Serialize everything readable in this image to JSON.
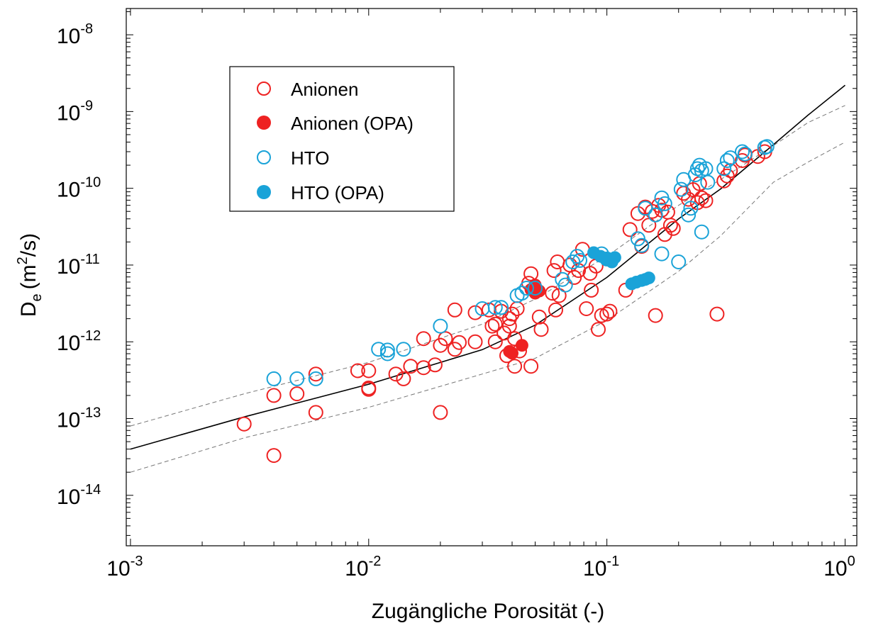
{
  "chart_data": {
    "type": "scatter",
    "title": "",
    "xlabel": "Zugängliche Porosität (-)",
    "ylabel": {
      "main": "D",
      "sub": "e",
      "unit_pre": "(m",
      "unit_sup": "2",
      "unit_post": "/s)"
    },
    "xscale": "log",
    "yscale": "log",
    "xlim": [
      0.00096,
      1.12
    ],
    "ylim": [
      2.2e-15,
      2.2e-08
    ],
    "x_ticks": [
      {
        "value": 0.001,
        "base": "10",
        "exp": "-3"
      },
      {
        "value": 0.01,
        "base": "10",
        "exp": "-2"
      },
      {
        "value": 0.1,
        "base": "10",
        "exp": "-1"
      },
      {
        "value": 1,
        "base": "10",
        "exp": "0"
      }
    ],
    "y_ticks": [
      {
        "value": 1e-14,
        "base": "10",
        "exp": "-14"
      },
      {
        "value": 1e-13,
        "base": "10",
        "exp": "-13"
      },
      {
        "value": 1e-12,
        "base": "10",
        "exp": "-12"
      },
      {
        "value": 1e-11,
        "base": "10",
        "exp": "-11"
      },
      {
        "value": 1e-10,
        "base": "10",
        "exp": "-10"
      },
      {
        "value": 1e-09,
        "base": "10",
        "exp": "-9"
      },
      {
        "value": 1e-08,
        "base": "10",
        "exp": "-8"
      }
    ],
    "grid": false,
    "legend": {
      "placement": "top-left"
    },
    "colors": {
      "anion": "#ee2222",
      "hto": "#1aa3d8",
      "fit": "#000000",
      "band": "#777777"
    },
    "fit_curve": {
      "style": "solid",
      "points": [
        [
          0.001,
          4e-14
        ],
        [
          0.003,
          1.05e-13
        ],
        [
          0.01,
          2.8e-13
        ],
        [
          0.03,
          7.9e-13
        ],
        [
          0.05,
          1.65e-12
        ],
        [
          0.1,
          6.9e-12
        ],
        [
          0.2,
          4e-11
        ],
        [
          0.3,
          9.8e-11
        ],
        [
          0.5,
          3.7e-10
        ],
        [
          0.7,
          9e-10
        ],
        [
          1.0,
          2.2e-09
        ]
      ]
    },
    "band_upper": {
      "style": "dashed",
      "points": [
        [
          0.001,
          8e-14
        ],
        [
          0.003,
          2.1e-13
        ],
        [
          0.01,
          5.4e-13
        ],
        [
          0.03,
          1.7e-12
        ],
        [
          0.05,
          3.6e-12
        ],
        [
          0.1,
          1.3e-11
        ],
        [
          0.2,
          6e-11
        ],
        [
          0.3,
          1.3e-10
        ],
        [
          0.5,
          3.6e-10
        ],
        [
          0.7,
          7.2e-10
        ],
        [
          1.0,
          1.2e-09
        ]
      ]
    },
    "band_lower": {
      "style": "dashed",
      "points": [
        [
          0.001,
          2e-14
        ],
        [
          0.003,
          5.6e-14
        ],
        [
          0.01,
          1.4e-13
        ],
        [
          0.03,
          3.8e-13
        ],
        [
          0.05,
          6.1e-13
        ],
        [
          0.1,
          1.9e-12
        ],
        [
          0.2,
          8.3e-12
        ],
        [
          0.3,
          2.4e-11
        ],
        [
          0.5,
          1.2e-10
        ],
        [
          0.7,
          2.2e-10
        ],
        [
          1.0,
          4e-10
        ]
      ]
    },
    "series": [
      {
        "name": "Anionen",
        "color": "#ee2222",
        "filled": false,
        "points": [
          [
            0.003,
            8.5e-14
          ],
          [
            0.004,
            3.3e-14
          ],
          [
            0.004,
            2e-13
          ],
          [
            0.005,
            2.1e-13
          ],
          [
            0.006,
            3.8e-13
          ],
          [
            0.006,
            1.2e-13
          ],
          [
            0.009,
            4.2e-13
          ],
          [
            0.01,
            4.2e-13
          ],
          [
            0.01,
            2.5e-13
          ],
          [
            0.01,
            2.4e-13
          ],
          [
            0.013,
            3.8e-13
          ],
          [
            0.014,
            3.3e-13
          ],
          [
            0.015,
            4.8e-13
          ],
          [
            0.017,
            4.6e-13
          ],
          [
            0.017,
            1.1e-12
          ],
          [
            0.019,
            5e-13
          ],
          [
            0.02,
            1.2e-13
          ],
          [
            0.02,
            9e-13
          ],
          [
            0.021,
            1.1e-12
          ],
          [
            0.023,
            2.6e-12
          ],
          [
            0.023,
            8e-13
          ],
          [
            0.024,
            9.8e-13
          ],
          [
            0.028,
            2.4e-12
          ],
          [
            0.028,
            1e-12
          ],
          [
            0.032,
            2.6e-12
          ],
          [
            0.033,
            1.6e-12
          ],
          [
            0.034,
            1.7e-12
          ],
          [
            0.034,
            1e-12
          ],
          [
            0.036,
            2.5e-12
          ],
          [
            0.037,
            1.3e-12
          ],
          [
            0.038,
            6.6e-13
          ],
          [
            0.039,
            2e-12
          ],
          [
            0.039,
            1.6e-12
          ],
          [
            0.04,
            2.3e-12
          ],
          [
            0.041,
            4.8e-13
          ],
          [
            0.041,
            1.1e-12
          ],
          [
            0.042,
            2.7e-12
          ],
          [
            0.043,
            7.6e-13
          ],
          [
            0.047,
            5.8e-12
          ],
          [
            0.048,
            7.7e-12
          ],
          [
            0.048,
            4.8e-13
          ],
          [
            0.052,
            2.1e-12
          ],
          [
            0.053,
            1.45e-12
          ],
          [
            0.059,
            4.3e-12
          ],
          [
            0.06,
            8.5e-12
          ],
          [
            0.061,
            2.6e-12
          ],
          [
            0.062,
            1.1e-11
          ],
          [
            0.063,
            4e-12
          ],
          [
            0.07,
            1e-11
          ],
          [
            0.073,
            6.9e-12
          ],
          [
            0.076,
            8.5e-12
          ],
          [
            0.079,
            1.6e-11
          ],
          [
            0.082,
            2.7e-12
          ],
          [
            0.085,
            7.8e-12
          ],
          [
            0.086,
            4.7e-12
          ],
          [
            0.09,
            9.7e-12
          ],
          [
            0.092,
            1.45e-12
          ],
          [
            0.095,
            2.2e-12
          ],
          [
            0.1,
            2.3e-12
          ],
          [
            0.103,
            2.5e-12
          ],
          [
            0.12,
            4.7e-12
          ],
          [
            0.125,
            2.9e-11
          ],
          [
            0.135,
            4.7e-11
          ],
          [
            0.14,
            1.75e-11
          ],
          [
            0.145,
            5.7e-11
          ],
          [
            0.15,
            3.3e-11
          ],
          [
            0.155,
            5e-11
          ],
          [
            0.16,
            2.2e-12
          ],
          [
            0.165,
            6e-11
          ],
          [
            0.17,
            5.2e-11
          ],
          [
            0.175,
            2.5e-11
          ],
          [
            0.18,
            4.9e-11
          ],
          [
            0.185,
            3.3e-11
          ],
          [
            0.19,
            3e-11
          ],
          [
            0.21,
            8.6e-11
          ],
          [
            0.22,
            7.2e-11
          ],
          [
            0.23,
            9.6e-11
          ],
          [
            0.24,
            6.5e-11
          ],
          [
            0.245,
            1.15e-10
          ],
          [
            0.25,
            7.5e-11
          ],
          [
            0.26,
            6.9e-11
          ],
          [
            0.29,
            2.3e-12
          ],
          [
            0.31,
            1.25e-10
          ],
          [
            0.32,
            1.45e-10
          ],
          [
            0.33,
            1.7e-10
          ],
          [
            0.37,
            2.3e-10
          ],
          [
            0.38,
            2.7e-10
          ],
          [
            0.43,
            2.6e-10
          ],
          [
            0.46,
            3e-10
          ]
        ]
      },
      {
        "name": "Anionen (OPA)",
        "color": "#ee2222",
        "filled": true,
        "points": [
          [
            0.039,
            7.5e-13
          ],
          [
            0.04,
            7.1e-13
          ],
          [
            0.044,
            9e-13
          ],
          [
            0.048,
            4.8e-12
          ],
          [
            0.05,
            5.5e-12
          ],
          [
            0.05,
            4.3e-12
          ],
          [
            0.052,
            4.6e-12
          ]
        ]
      },
      {
        "name": "HTO",
        "color": "#1aa3d8",
        "filled": false,
        "points": [
          [
            0.004,
            3.3e-13
          ],
          [
            0.005,
            3.3e-13
          ],
          [
            0.006,
            3.3e-13
          ],
          [
            0.011,
            8e-13
          ],
          [
            0.012,
            7e-13
          ],
          [
            0.012,
            7.8e-13
          ],
          [
            0.014,
            8e-13
          ],
          [
            0.02,
            1.6e-12
          ],
          [
            0.03,
            2.7e-12
          ],
          [
            0.034,
            2.8e-12
          ],
          [
            0.036,
            2.8e-12
          ],
          [
            0.042,
            4e-12
          ],
          [
            0.044,
            4.3e-12
          ],
          [
            0.046,
            5e-12
          ],
          [
            0.05,
            5e-12
          ],
          [
            0.065,
            6.5e-12
          ],
          [
            0.067,
            5.5e-12
          ],
          [
            0.072,
            1.1e-11
          ],
          [
            0.075,
            1.3e-11
          ],
          [
            0.077,
            1.15e-11
          ],
          [
            0.095,
            1.4e-11
          ],
          [
            0.1,
            1.2e-11
          ],
          [
            0.135,
            2.2e-11
          ],
          [
            0.14,
            1.8e-11
          ],
          [
            0.145,
            5.5e-11
          ],
          [
            0.16,
            4.5e-11
          ],
          [
            0.17,
            7.5e-11
          ],
          [
            0.175,
            6.3e-11
          ],
          [
            0.17,
            1.4e-11
          ],
          [
            0.2,
            1.1e-11
          ],
          [
            0.205,
            9.7e-11
          ],
          [
            0.21,
            1.3e-10
          ],
          [
            0.22,
            4.5e-11
          ],
          [
            0.225,
            5.5e-11
          ],
          [
            0.235,
            1.5e-10
          ],
          [
            0.24,
            1.8e-10
          ],
          [
            0.245,
            2e-10
          ],
          [
            0.25,
            1.7e-10
          ],
          [
            0.25,
            2.7e-11
          ],
          [
            0.26,
            1.8e-10
          ],
          [
            0.265,
            1.2e-10
          ],
          [
            0.31,
            1.8e-10
          ],
          [
            0.32,
            2.3e-10
          ],
          [
            0.33,
            2.5e-10
          ],
          [
            0.37,
            3e-10
          ],
          [
            0.38,
            2.8e-10
          ],
          [
            0.46,
            3.4e-10
          ],
          [
            0.47,
            3.5e-10
          ]
        ]
      },
      {
        "name": "HTO (OPA)",
        "color": "#1aa3d8",
        "filled": true,
        "points": [
          [
            0.088,
            1.45e-11
          ],
          [
            0.094,
            1.3e-11
          ],
          [
            0.1,
            1.2e-11
          ],
          [
            0.105,
            1.1e-11
          ],
          [
            0.108,
            1.25e-11
          ],
          [
            0.127,
            5.7e-12
          ],
          [
            0.133,
            6e-12
          ],
          [
            0.14,
            6.3e-12
          ],
          [
            0.145,
            6.5e-12
          ],
          [
            0.15,
            6.8e-12
          ]
        ]
      }
    ]
  }
}
